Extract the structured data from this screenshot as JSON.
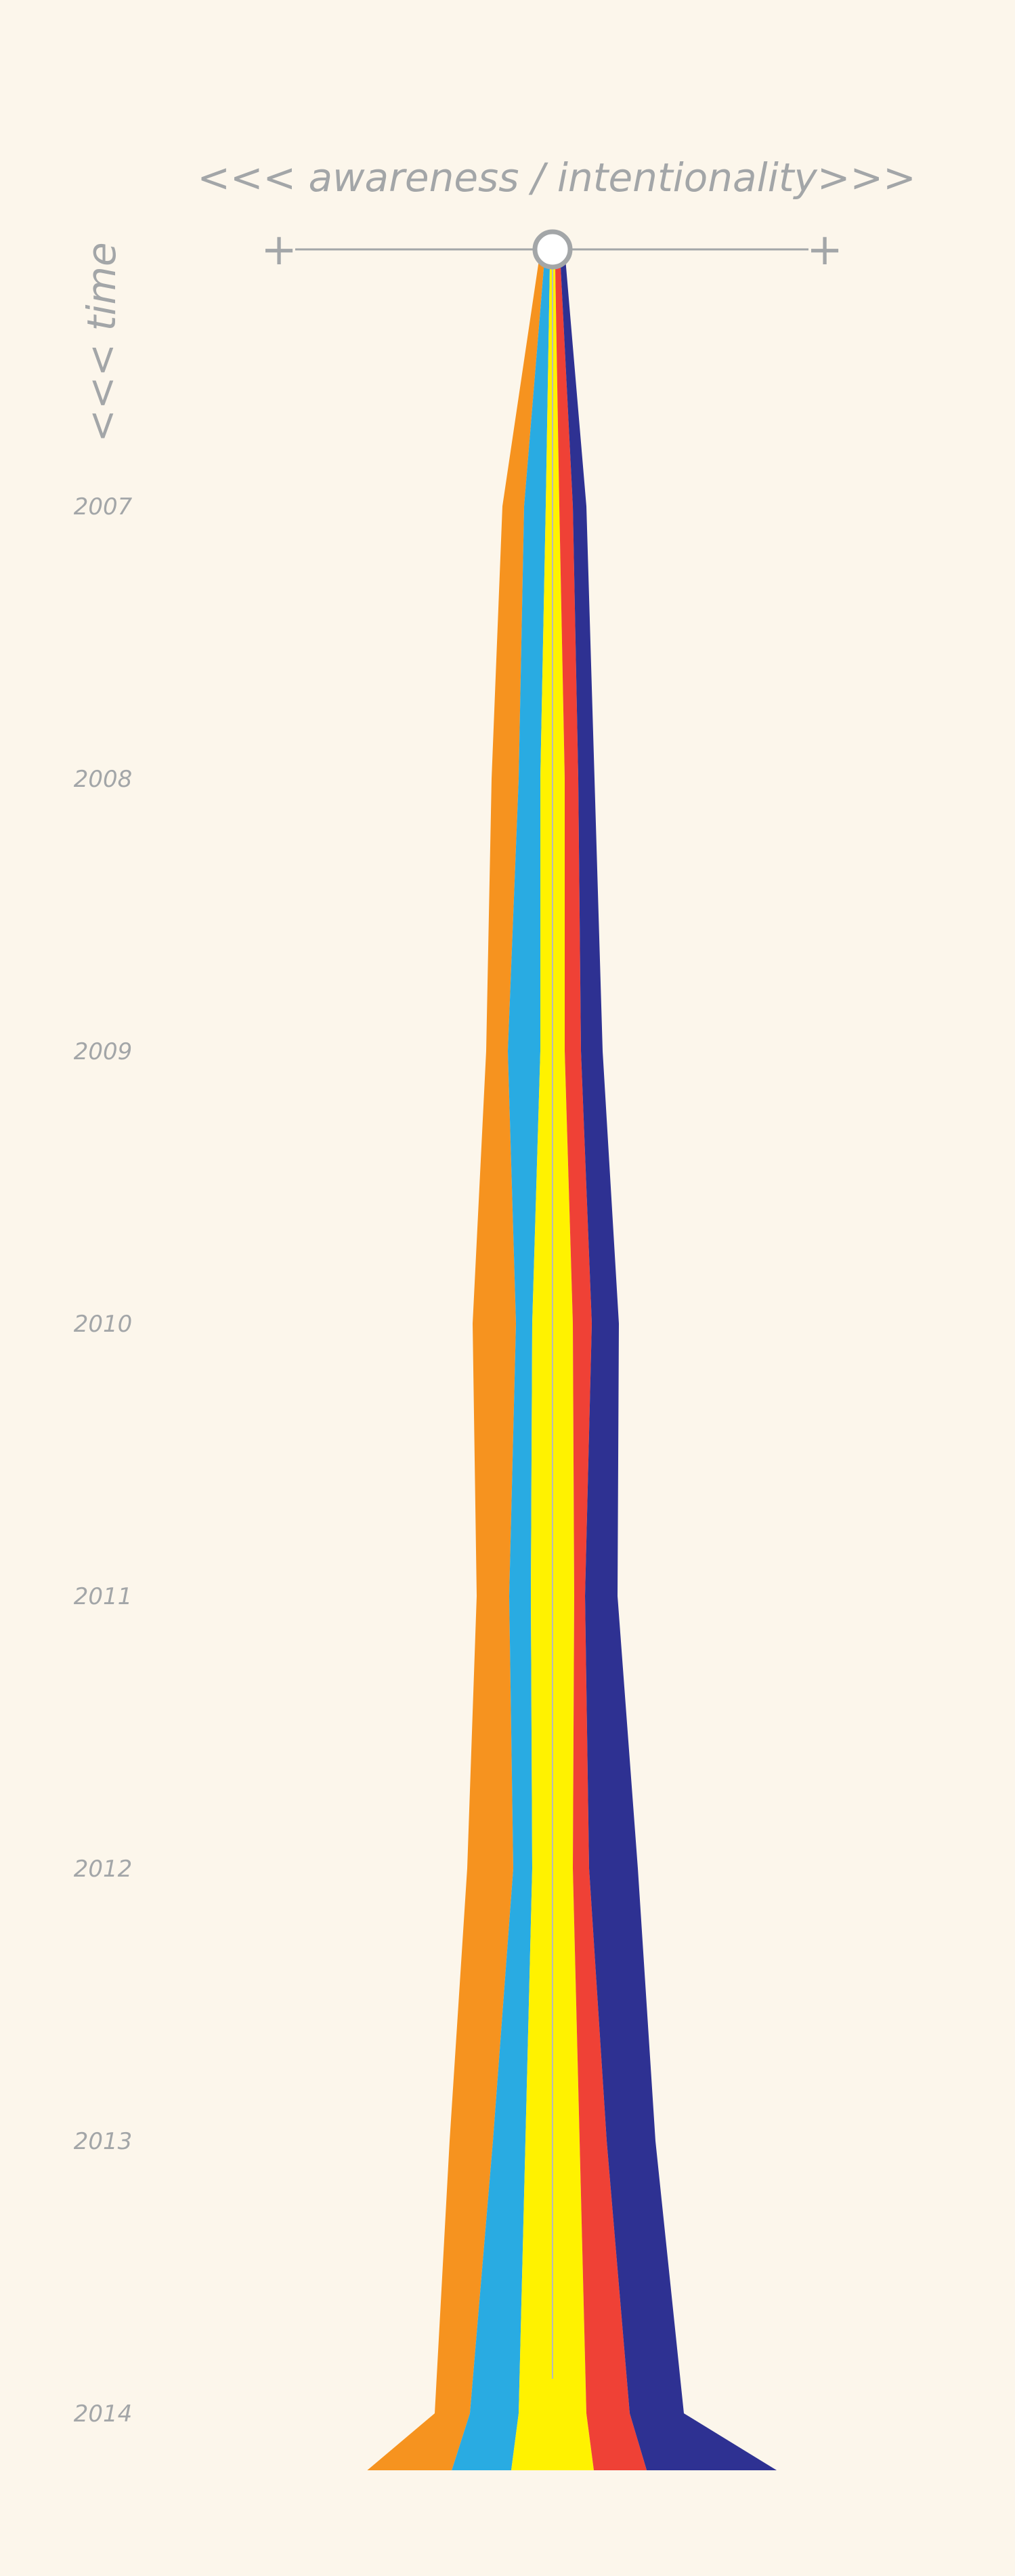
{
  "chart_data": {
    "type": "area",
    "title": "<<< awareness / intentionality>>>",
    "ylabel": "<<< time",
    "x_axis_ends": [
      "+",
      "+"
    ],
    "x_reference": "center line (stream axis)",
    "x": [
      "2007",
      "2008",
      "2009",
      "2010",
      "2011",
      "2012",
      "2013",
      "2014"
    ],
    "series": [
      {
        "color": "#f6931f",
        "values": [
          0.8,
          1.0,
          0.8,
          1.6,
          1.2,
          1.7,
          1.6,
          1.3
        ]
      },
      {
        "color": "#29abe2",
        "values": [
          0.8,
          0.8,
          1.2,
          0.6,
          0.8,
          0.7,
          1.2,
          1.8
        ]
      },
      {
        "color": "#fff200",
        "values": [
          0.5,
          0.9,
          0.9,
          1.5,
          1.6,
          1.5,
          2.0,
          2.5
        ]
      },
      {
        "color": "#ef4136",
        "values": [
          0.5,
          0.5,
          0.6,
          0.7,
          0.4,
          0.6,
          1.0,
          1.6
        ]
      },
      {
        "color": "#2e3192",
        "values": [
          0.5,
          0.6,
          0.8,
          1.0,
          1.2,
          1.8,
          1.8,
          2.0
        ]
      }
    ],
    "grid": false,
    "legend": "none"
  }
}
